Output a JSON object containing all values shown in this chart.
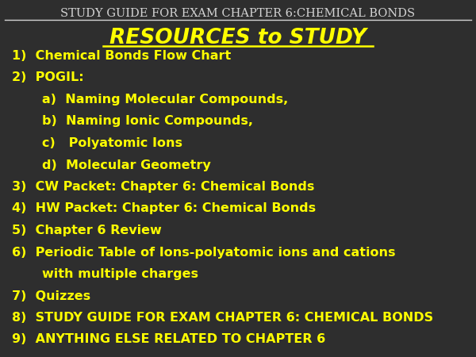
{
  "header": "STUDY GUIDE FOR EXAM CHAPTER 6:CHEMICAL BONDS",
  "title": "RESOURCES to STUDY",
  "bg_color": "#2e2e2e",
  "header_text_color": "#d4d4d4",
  "title_color": "#ffff00",
  "body_text_color": "#ffff00",
  "header_fontsize": 10.5,
  "title_fontsize": 19,
  "body_fontsize": 11.5,
  "items": [
    {
      "indent": 0,
      "text": "1)  Chemical Bonds Flow Chart"
    },
    {
      "indent": 0,
      "text": "2)  POGIL:"
    },
    {
      "indent": 1,
      "text": "a)  Naming Molecular Compounds,"
    },
    {
      "indent": 1,
      "text": "b)  Naming Ionic Compounds,"
    },
    {
      "indent": 1,
      "text": "c)   Polyatomic Ions"
    },
    {
      "indent": 1,
      "text": "d)  Molecular Geometry"
    },
    {
      "indent": 0,
      "text": "3)  CW Packet: Chapter 6: Chemical Bonds"
    },
    {
      "indent": 0,
      "text": "4)  HW Packet: Chapter 6: Chemical Bonds"
    },
    {
      "indent": 0,
      "text": "5)  Chapter 6 Review"
    },
    {
      "indent": 0,
      "text": "6)  Periodic Table of Ions-polyatomic ions and cations"
    },
    {
      "indent": 1,
      "text": "with multiple charges"
    },
    {
      "indent": 0,
      "text": "7)  Quizzes"
    },
    {
      "indent": 0,
      "text": "8)  STUDY GUIDE FOR EXAM CHAPTER 6: CHEMICAL BONDS"
    },
    {
      "indent": 0,
      "text": "9)  ANYTHING ELSE RELATED TO CHAPTER 6"
    }
  ]
}
